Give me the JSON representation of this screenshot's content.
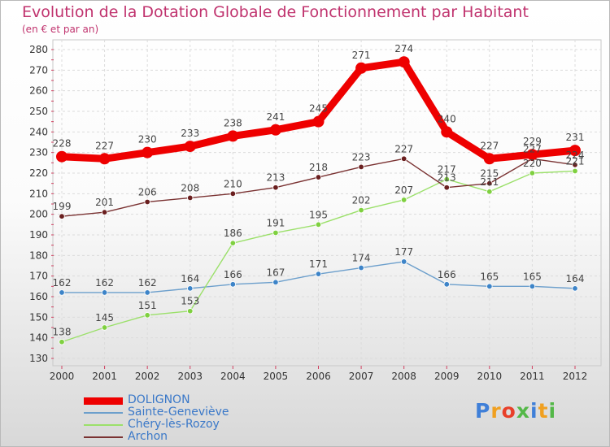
{
  "header": {
    "title": "Evolution de la Dotation Globale de Fonctionnement par Habitant",
    "subtitle": "(en € et par an)"
  },
  "logo": {
    "letters": [
      "P",
      "r",
      "o",
      "x",
      "i",
      "t",
      "i"
    ],
    "colors": [
      "#3f7fd8",
      "#f0a020",
      "#e8402a",
      "#54b848",
      "#3f7fd8",
      "#f0a020",
      "#54b848"
    ]
  },
  "chart_data": {
    "type": "line",
    "x": [
      "2000",
      "2001",
      "2002",
      "2003",
      "2004",
      "2005",
      "2006",
      "2007",
      "2008",
      "2009",
      "2010",
      "2011",
      "2012"
    ],
    "ylim": [
      130,
      280
    ],
    "yticks": [
      130,
      140,
      150,
      160,
      170,
      180,
      190,
      200,
      210,
      220,
      230,
      240,
      250,
      260,
      270,
      280
    ],
    "grid": true,
    "series": [
      {
        "name": "DOLIGNON",
        "color": "#ee0000",
        "marker": "#ee0000",
        "values": [
          228,
          227,
          230,
          233,
          238,
          241,
          245,
          271,
          274,
          240,
          227,
          229,
          231
        ]
      },
      {
        "name": "Sainte-Geneviève",
        "color": "#6c9fcc",
        "marker": "#3d84c8",
        "values": [
          162,
          162,
          162,
          164,
          166,
          167,
          171,
          174,
          177,
          166,
          165,
          165,
          164
        ]
      },
      {
        "name": "Chéry-lès-Rozoy",
        "color": "#9be06a",
        "marker": "#7fd040",
        "values": [
          138,
          145,
          151,
          153,
          186,
          191,
          195,
          202,
          207,
          217,
          211,
          220,
          221
        ]
      },
      {
        "name": "Archon",
        "color": "#7a3232",
        "marker": "#6a1f1f",
        "values": [
          199,
          201,
          206,
          208,
          210,
          213,
          218,
          223,
          227,
          213,
          215,
          227,
          224
        ]
      }
    ],
    "data_labels": [
      [
        "228",
        "227",
        "230",
        "233",
        "238",
        "241",
        "245",
        "271",
        "274",
        "240",
        "227",
        "229",
        "231"
      ],
      [
        "162",
        "162",
        "162",
        "164",
        "166",
        "167",
        "171",
        "174",
        "177",
        "166",
        "165",
        "165",
        "164"
      ],
      [
        "138",
        "145",
        "151",
        "153",
        "186",
        "191",
        "195",
        "202",
        "207",
        "217",
        "211",
        "220",
        "221"
      ],
      [
        "199",
        "201",
        "206",
        "208",
        "210",
        "213",
        "218",
        "223",
        "227",
        "213",
        "215",
        "227",
        "224"
      ]
    ]
  }
}
